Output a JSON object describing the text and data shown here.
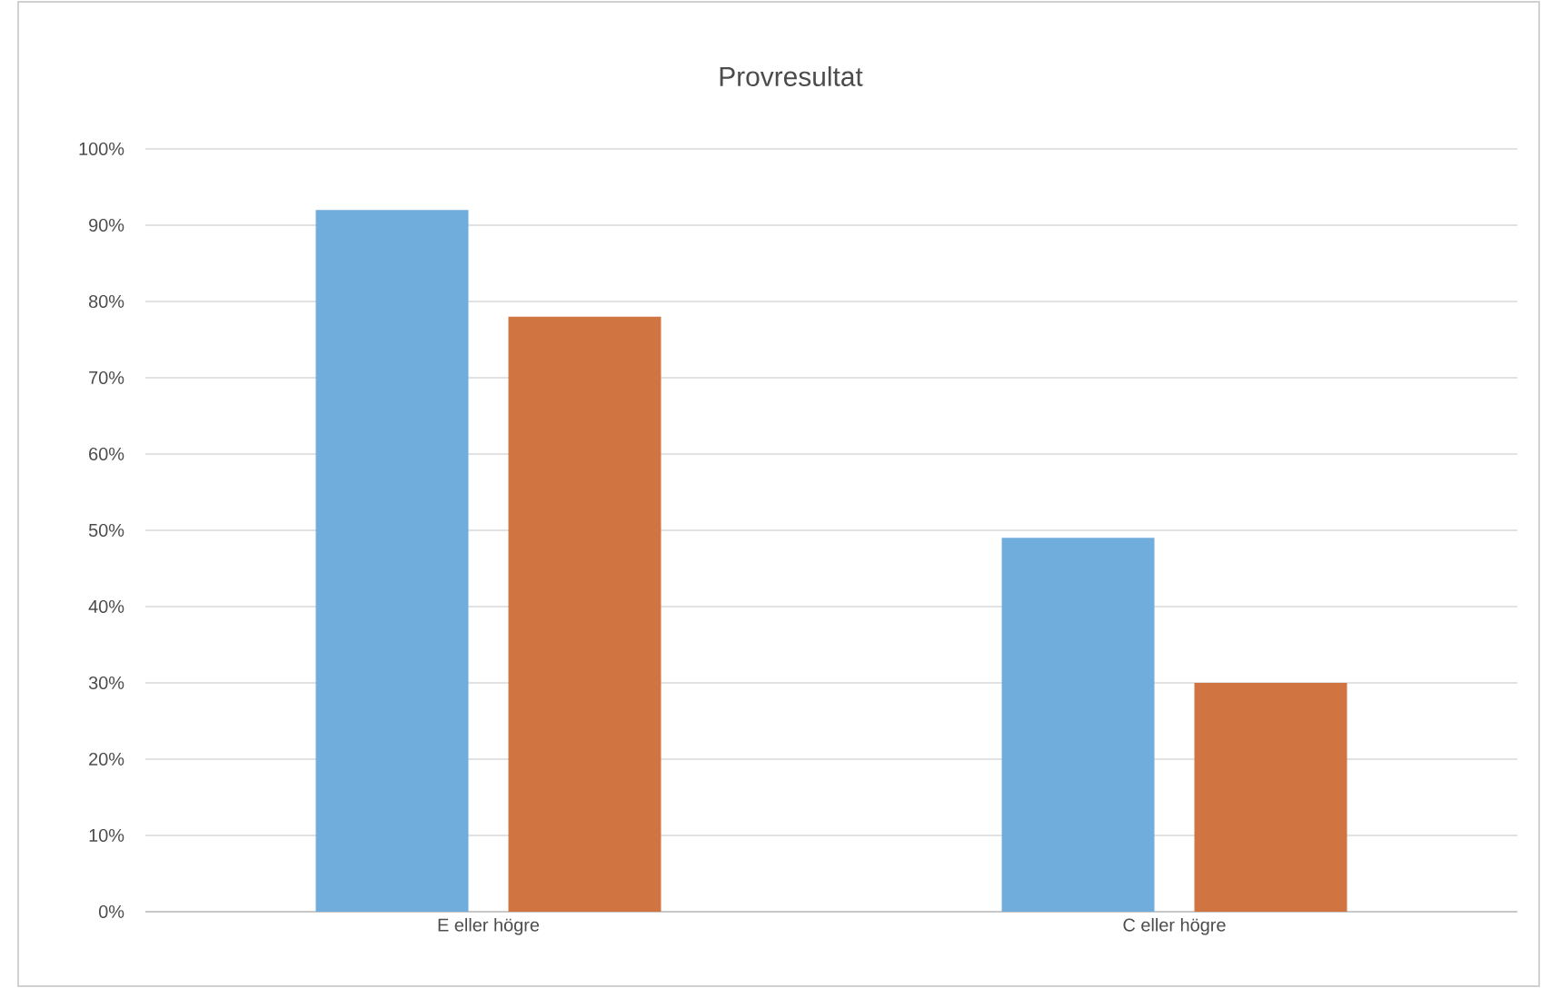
{
  "chart_data": {
    "type": "bar",
    "title": "Provresultat",
    "categories": [
      "E eller högre",
      "C eller högre"
    ],
    "series": [
      {
        "color": "#70acdc",
        "values": [
          92,
          49
        ]
      },
      {
        "color": "#d07542",
        "values": [
          78,
          30
        ]
      }
    ],
    "ylim": [
      0,
      100
    ],
    "yticks": [
      {
        "value": 0,
        "label": "0%"
      },
      {
        "value": 10,
        "label": "10%"
      },
      {
        "value": 20,
        "label": "20%"
      },
      {
        "value": 30,
        "label": "30%"
      },
      {
        "value": 40,
        "label": "40%"
      },
      {
        "value": 50,
        "label": "50%"
      },
      {
        "value": 60,
        "label": "60%"
      },
      {
        "value": 70,
        "label": "70%"
      },
      {
        "value": 80,
        "label": "80%"
      },
      {
        "value": 90,
        "label": "90%"
      },
      {
        "value": 100,
        "label": "100%"
      }
    ],
    "grid": "y"
  }
}
